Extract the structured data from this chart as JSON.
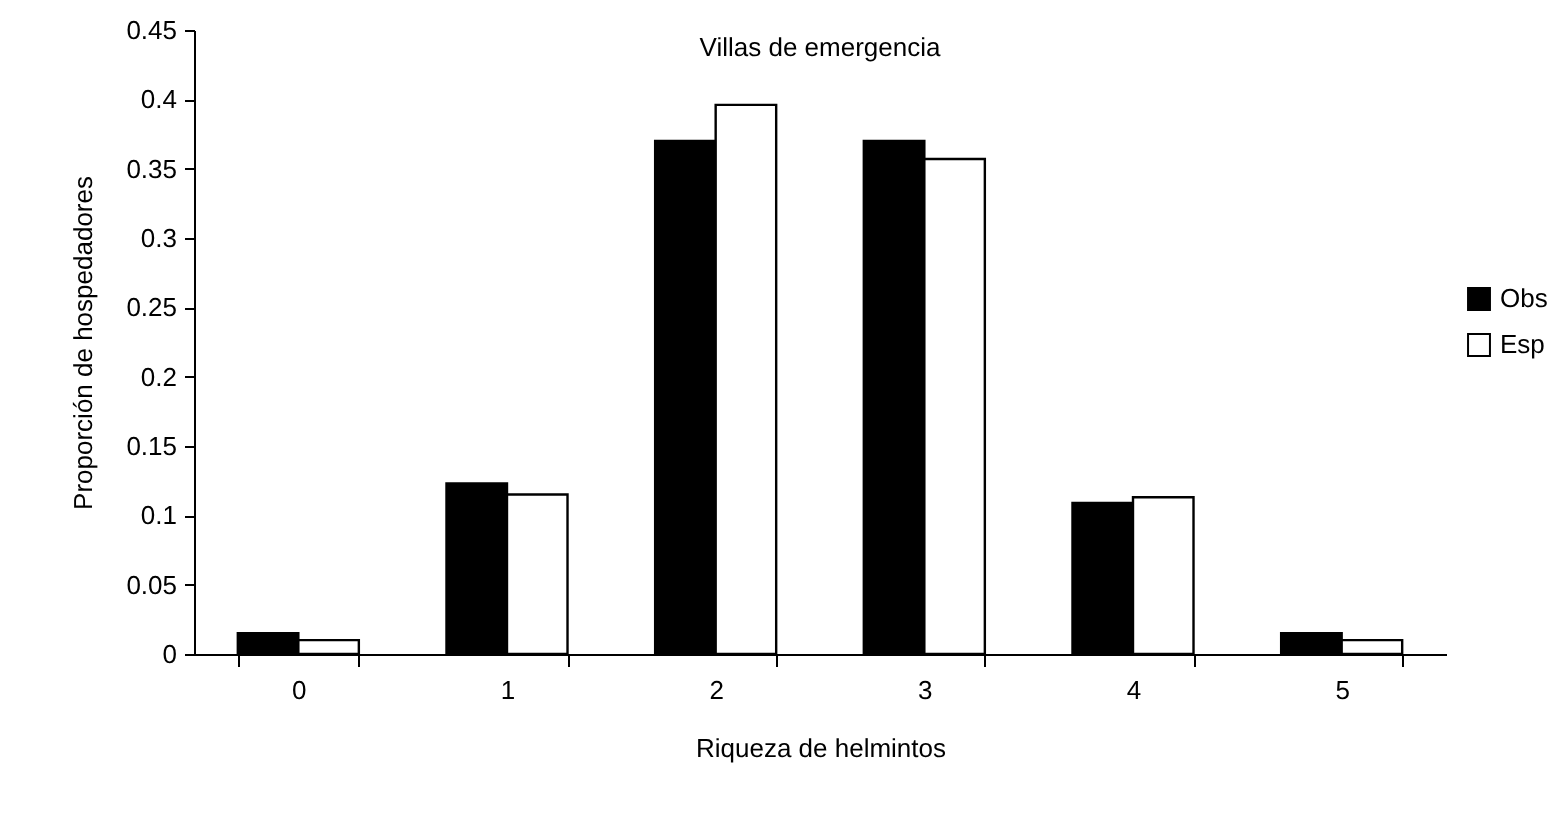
{
  "chart_data": {
    "type": "bar",
    "title": "Villas de emergencia",
    "xlabel": "Riqueza de helmintos",
    "ylabel": "Proporción de hospedadores",
    "categories": [
      "0",
      "1",
      "2",
      "3",
      "4",
      "5"
    ],
    "series": [
      {
        "name": "Obs",
        "color": "#000000",
        "values": [
          0.015,
          0.123,
          0.37,
          0.37,
          0.109,
          0.015
        ]
      },
      {
        "name": "Esp",
        "color": "#ffffff",
        "values": [
          0.01,
          0.115,
          0.396,
          0.357,
          0.113,
          0.01
        ]
      }
    ],
    "ylim": [
      0,
      0.45
    ],
    "yticks": [
      0,
      0.05,
      0.1,
      0.15,
      0.2,
      0.25,
      0.3,
      0.35,
      0.4,
      0.45
    ],
    "grid": false,
    "legend": "right"
  }
}
